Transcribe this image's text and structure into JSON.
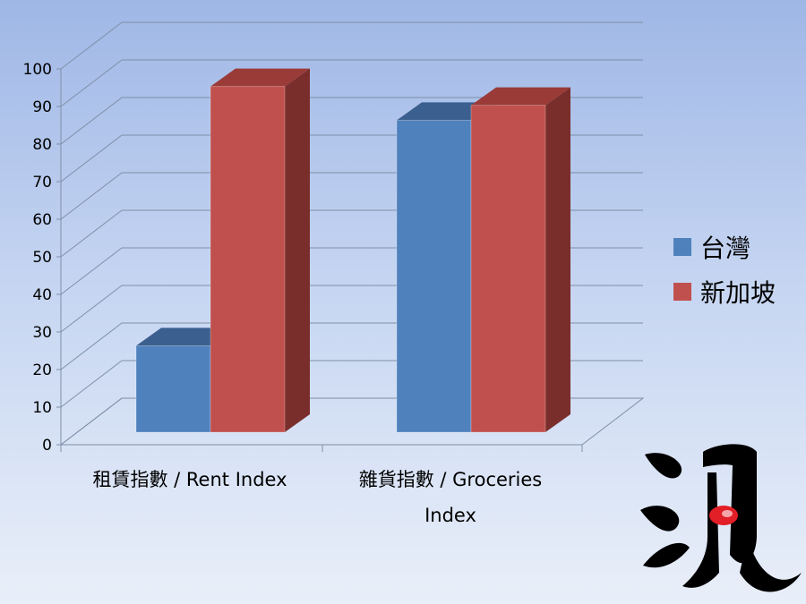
{
  "colors": {
    "series_a_front": "#4f81bd",
    "series_a_top": "#3b5f8e",
    "series_a_side": "#2f4d74",
    "series_b_front": "#c0504d",
    "series_b_top": "#9a3b38",
    "series_b_side": "#7a2e2c",
    "grid": "#7f8fa8",
    "axis_text": "#000000"
  },
  "chart_data": {
    "type": "bar",
    "style": "3d-clustered-column",
    "categories": [
      "租賃指數 / Rent Index",
      "雜貨指數 / Groceries Index"
    ],
    "series": [
      {
        "name": "台灣",
        "values": [
          23,
          83
        ]
      },
      {
        "name": "新加坡",
        "values": [
          92,
          87
        ]
      }
    ],
    "ylim": [
      0,
      100
    ],
    "yticks": [
      0,
      10,
      20,
      30,
      40,
      50,
      60,
      70,
      80,
      90,
      100
    ],
    "grid": true,
    "legend_position": "right"
  },
  "logo": {
    "text": "浪",
    "icon": "brush-calligraphy-logo"
  }
}
